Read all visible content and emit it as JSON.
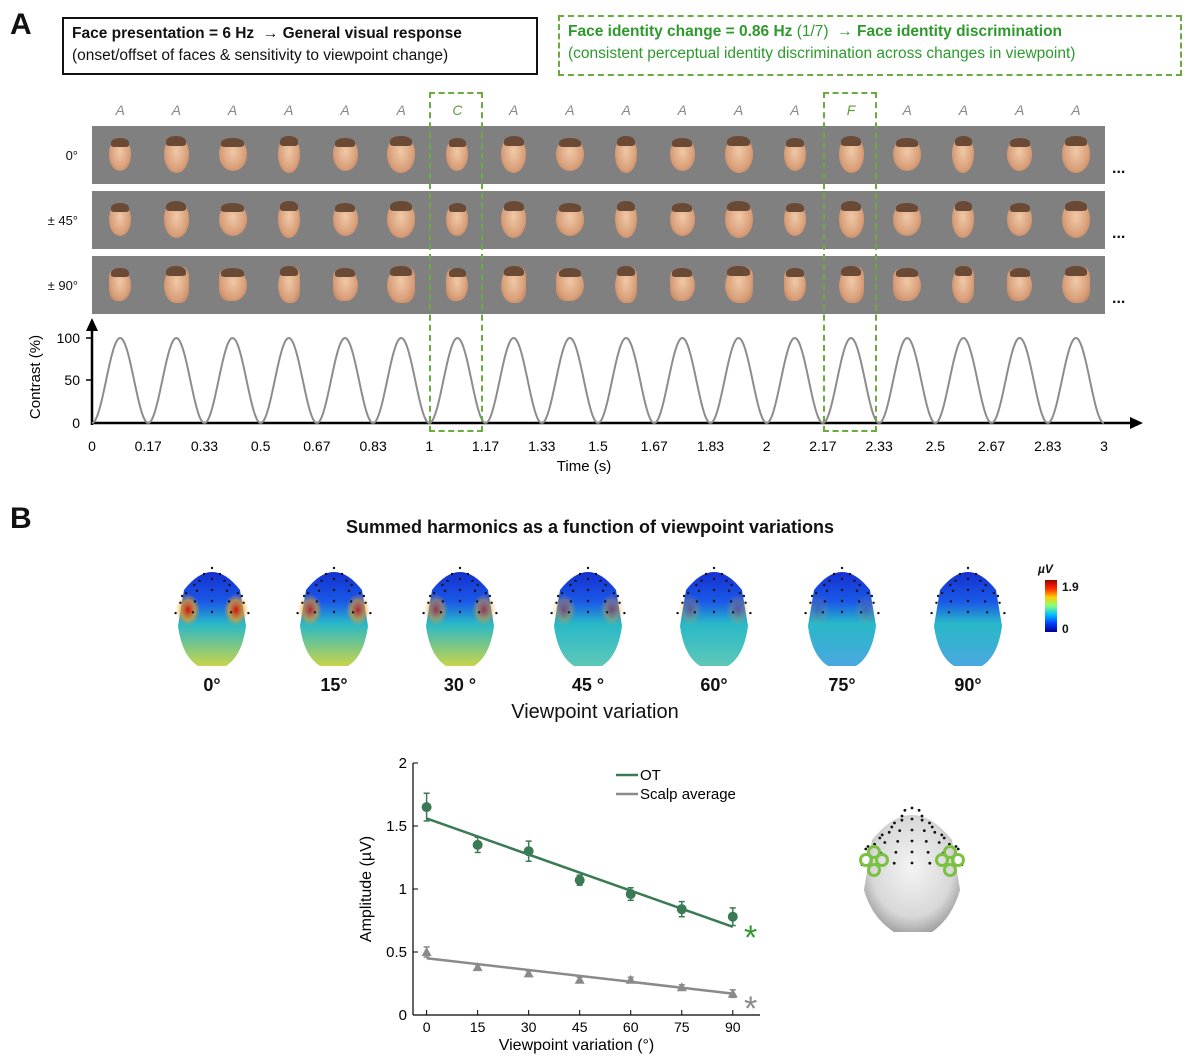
{
  "panel_a": {
    "letter": "A",
    "box1": {
      "line1_left": "Face presentation = 6 Hz",
      "line1_arrow": "→ General visual response",
      "line2": "(onset/offset of faces & sensitivity to viewpoint change)"
    },
    "box2": {
      "line1_left": "Face identity change = 0.86 Hz",
      "line1_freq": "(1/7)",
      "line1_arrow": "→ Face identity discrimination",
      "line2": "(consistent perceptual identity discrimination across changes in viewpoint)"
    },
    "sequence_letters": [
      "A",
      "A",
      "A",
      "A",
      "A",
      "A",
      "C",
      "A",
      "A",
      "A",
      "A",
      "A",
      "A",
      "F",
      "A",
      "A",
      "A",
      "A"
    ],
    "odd_indices": [
      6,
      13
    ],
    "rows": [
      {
        "label": "0°"
      },
      {
        "label": "± 45°"
      },
      {
        "label": "± 90°"
      }
    ],
    "ellipsis": "...",
    "contrast_chart": {
      "ylabel": "Contrast (%)",
      "xlabel": "Time (s)",
      "yticks": [
        "100",
        "50",
        "0"
      ],
      "xticks": [
        "0",
        "0.17",
        "0.33",
        "0.5",
        "0.67",
        "0.83",
        "1",
        "1.17",
        "1.33",
        "1.5",
        "1.67",
        "1.83",
        "2",
        "2.17",
        "2.33",
        "2.5",
        "2.67",
        "2.83",
        "3"
      ]
    }
  },
  "panel_b": {
    "letter": "B",
    "title": "Summed harmonics as a function of viewpoint variations",
    "topo_labels": [
      "0°",
      "15°",
      "30 °",
      "45 °",
      "60°",
      "75°",
      "90°"
    ],
    "topo_xlabel": "Viewpoint variation",
    "colorbar": {
      "unit": "µV",
      "max": "1.9",
      "min": "0"
    },
    "legend": {
      "ot": "OT",
      "scalp": "Scalp average"
    },
    "star": "*"
  },
  "chart_data": {
    "type": "line",
    "xlabel": "Viewpoint variation (°)",
    "ylabel": "Amplitude (µV)",
    "x": [
      0,
      15,
      30,
      45,
      60,
      75,
      90
    ],
    "xticks": [
      "0",
      "15",
      "30",
      "45",
      "60",
      "75",
      "90"
    ],
    "yticks": [
      "0",
      "0.5",
      "1",
      "1.5",
      "2"
    ],
    "ylim": [
      0,
      2
    ],
    "xlim": [
      -4,
      98
    ],
    "series": [
      {
        "name": "OT",
        "values": [
          1.65,
          1.35,
          1.3,
          1.07,
          0.96,
          0.84,
          0.78
        ],
        "errors": [
          0.11,
          0.06,
          0.08,
          0.04,
          0.05,
          0.06,
          0.07
        ],
        "fit": [
          1.56,
          0.7
        ],
        "color": "#3a7a55",
        "marker": "circle"
      },
      {
        "name": "Scalp average",
        "values": [
          0.5,
          0.38,
          0.33,
          0.28,
          0.28,
          0.22,
          0.17
        ],
        "errors": [
          0.04,
          0.02,
          0.02,
          0.02,
          0.02,
          0.02,
          0.03
        ],
        "fit": [
          0.45,
          0.17
        ],
        "color": "#8a8a8a",
        "marker": "triangle"
      }
    ]
  },
  "colors": {
    "green": "#2e9a2e",
    "dash_green": "#6aab3f",
    "ot": "#3a7a55",
    "scalp": "#8a8a8a"
  }
}
